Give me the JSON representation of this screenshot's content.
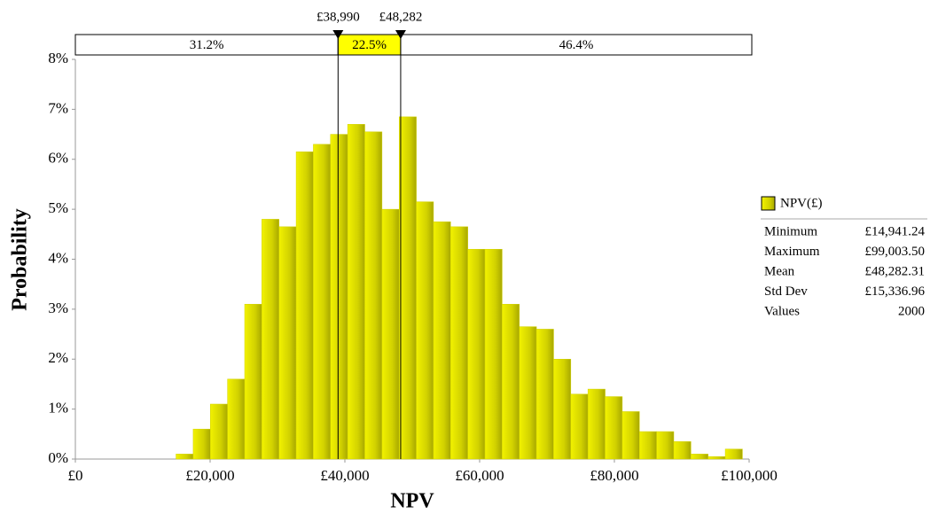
{
  "chart_data": {
    "type": "histogram",
    "name": "NPV(£)",
    "color": "#d2d200",
    "xlabel": "NPV",
    "ylabel": "Probability",
    "bins": [
      14941.24,
      17488.58,
      20035.92,
      22583.26,
      25130.6,
      27677.94,
      30225.28,
      32772.62,
      35319.96,
      37867.3,
      40414.64,
      42961.98,
      45509.32,
      48056.66,
      50604,
      53151.34,
      55698.68,
      58246.02,
      60793.36,
      63340.7,
      65888.04,
      68435.38,
      70982.72,
      73530.06,
      76077.4,
      78624.74,
      81172.08,
      83719.42,
      86266.76,
      88814.1,
      91361.44,
      93908.78,
      96456.12,
      99003.5
    ],
    "values": [
      0.1,
      0.6,
      1.1,
      1.6,
      3.1,
      4.8,
      4.65,
      6.15,
      6.3,
      6.5,
      6.7,
      6.55,
      5.0,
      6.85,
      5.15,
      4.75,
      4.65,
      4.2,
      4.2,
      3.1,
      2.65,
      2.6,
      2.0,
      1.3,
      1.4,
      1.25,
      0.95,
      0.55,
      0.55,
      0.35,
      0.1,
      0.05,
      0.2
    ],
    "xlim": [
      0,
      100000
    ],
    "xticks": [
      {
        "value": 0,
        "label": "£0"
      },
      {
        "value": 20000,
        "label": "£20,000"
      },
      {
        "value": 40000,
        "label": "£40,000"
      },
      {
        "value": 60000,
        "label": "£60,000"
      },
      {
        "value": 80000,
        "label": "£80,000"
      },
      {
        "value": 100000,
        "label": "£100,000"
      }
    ],
    "ylim": [
      0,
      8
    ],
    "yticks": [
      {
        "value": 0,
        "label": "0%"
      },
      {
        "value": 1,
        "label": "1%"
      },
      {
        "value": 2,
        "label": "2%"
      },
      {
        "value": 3,
        "label": "3%"
      },
      {
        "value": 4,
        "label": "4%"
      },
      {
        "value": 5,
        "label": "5%"
      },
      {
        "value": 6,
        "label": "6%"
      },
      {
        "value": 7,
        "label": "7%"
      },
      {
        "value": 8,
        "label": "8%"
      }
    ],
    "delimiters": [
      {
        "value": 38990,
        "label": "£38,990"
      },
      {
        "value": 48282,
        "label": "£48,282"
      }
    ],
    "band_values": [
      31.2,
      22.5,
      46.4
    ],
    "band_value_labels": [
      "31.2%",
      "22.5%",
      "46.4%"
    ],
    "band_color": "#ffff00",
    "stats": [
      {
        "label": "Minimum",
        "value": "£14,941.24"
      },
      {
        "label": "Maximum",
        "value": "£99,003.50"
      },
      {
        "label": "Mean",
        "value": "£48,282.31"
      },
      {
        "label": "Std Dev",
        "value": "£15,336.96"
      },
      {
        "label": "Values",
        "value": 2000
      }
    ]
  }
}
